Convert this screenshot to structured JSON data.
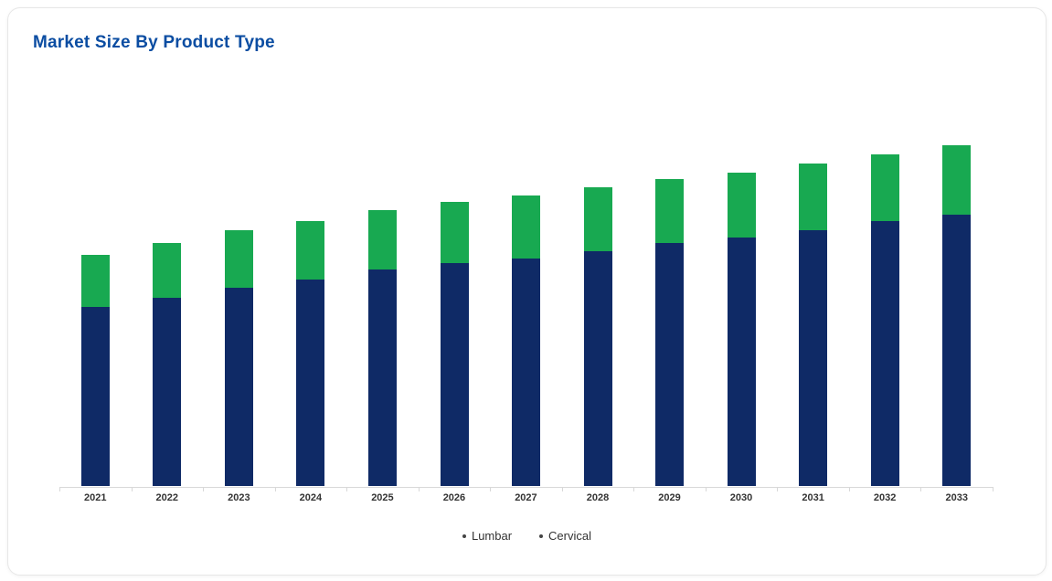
{
  "chart_data": {
    "type": "bar",
    "stacked": true,
    "title": "Market Size By Product Type",
    "title_color": "#0b4da2",
    "categories": [
      "2021",
      "2022",
      "2023",
      "2024",
      "2025",
      "2026",
      "2027",
      "2028",
      "2029",
      "2030",
      "2031",
      "2032",
      "2033"
    ],
    "series": [
      {
        "name": "Lumbar",
        "color": "#0f2a66",
        "values": [
          52.5,
          55.3,
          58.1,
          60.6,
          63.5,
          65.4,
          66.8,
          68.9,
          71.2,
          73.0,
          75.1,
          77.7,
          79.7
        ]
      },
      {
        "name": "Cervical",
        "color": "#18a951",
        "values": [
          15.3,
          16.0,
          17.0,
          17.1,
          17.5,
          17.8,
          18.3,
          18.6,
          18.7,
          19.0,
          19.4,
          19.5,
          20.3
        ]
      }
    ],
    "xlabel": "",
    "ylabel": "",
    "ylim": [
      0,
      105
    ],
    "yaxis_visible": false,
    "gridlines": false,
    "legend_position": "bottom-center",
    "legend_marker_color": "#444444",
    "axis_line_color": "#d8d8d8",
    "category_label_color": "#333333"
  }
}
